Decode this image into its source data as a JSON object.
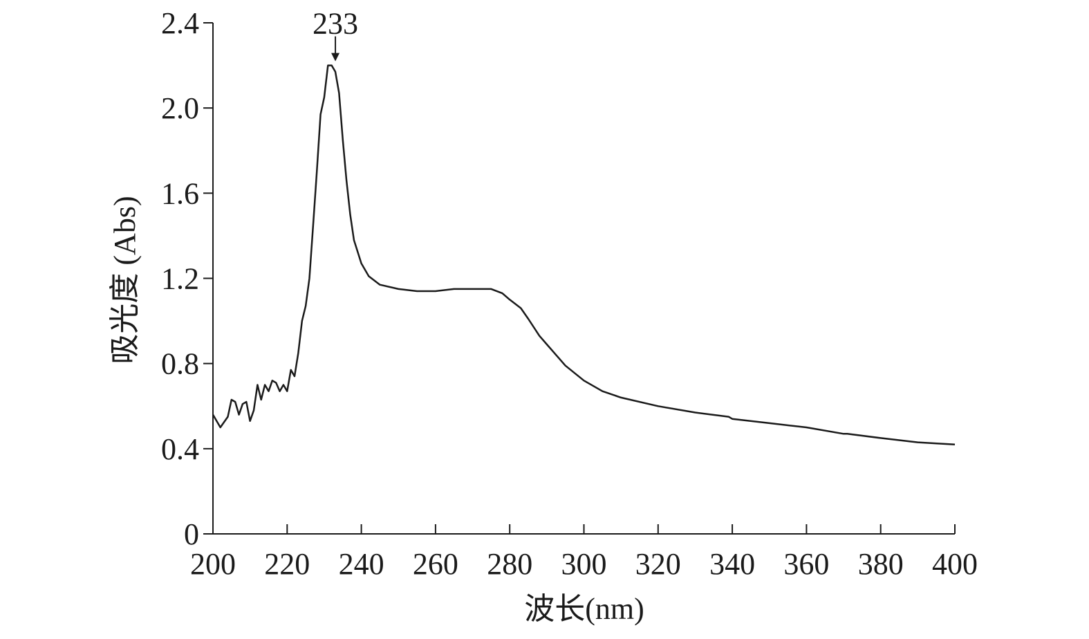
{
  "chart_data": {
    "type": "line",
    "x_label": "波长(nm)",
    "y_label": "吸光度 (Abs)",
    "xlim": [
      200,
      400
    ],
    "xticks": [
      200,
      220,
      240,
      260,
      280,
      300,
      320,
      340,
      360,
      380,
      400
    ],
    "ylim": [
      0,
      2.4
    ],
    "yticks": [
      0,
      0.4,
      0.8,
      1.2,
      1.6,
      {
        "value": 2,
        "label": "2.0"
      },
      2.4
    ],
    "annotation": {
      "label": "233",
      "x": 233,
      "y": 2.2
    },
    "series": [
      {
        "color": "#1a1a1a",
        "x": [
          200,
          202,
          204,
          205,
          206,
          207,
          208,
          209,
          210,
          211,
          212,
          213,
          214,
          215,
          216,
          217,
          218,
          219,
          220,
          221,
          222,
          223,
          224,
          225,
          226,
          227,
          228,
          229,
          230,
          231,
          232,
          233,
          234,
          235,
          236,
          237,
          238,
          240,
          242,
          245,
          250,
          255,
          260,
          265,
          270,
          275,
          278,
          280,
          283,
          285,
          288,
          290,
          295,
          300,
          305,
          310,
          320,
          330,
          339,
          340,
          350,
          360,
          370,
          371,
          380,
          390,
          400
        ],
        "values": [
          0.56,
          0.5,
          0.55,
          0.63,
          0.62,
          0.56,
          0.61,
          0.62,
          0.53,
          0.58,
          0.7,
          0.63,
          0.7,
          0.67,
          0.72,
          0.71,
          0.67,
          0.7,
          0.67,
          0.77,
          0.74,
          0.85,
          1.0,
          1.07,
          1.2,
          1.45,
          1.7,
          1.97,
          2.05,
          2.2,
          2.2,
          2.17,
          2.07,
          1.85,
          1.66,
          1.5,
          1.38,
          1.27,
          1.21,
          1.17,
          1.15,
          1.14,
          1.14,
          1.15,
          1.15,
          1.15,
          1.13,
          1.1,
          1.06,
          1.01,
          0.93,
          0.89,
          0.79,
          0.72,
          0.67,
          0.64,
          0.6,
          0.57,
          0.55,
          0.54,
          0.52,
          0.5,
          0.47,
          0.47,
          0.45,
          0.43,
          0.42
        ]
      }
    ]
  }
}
